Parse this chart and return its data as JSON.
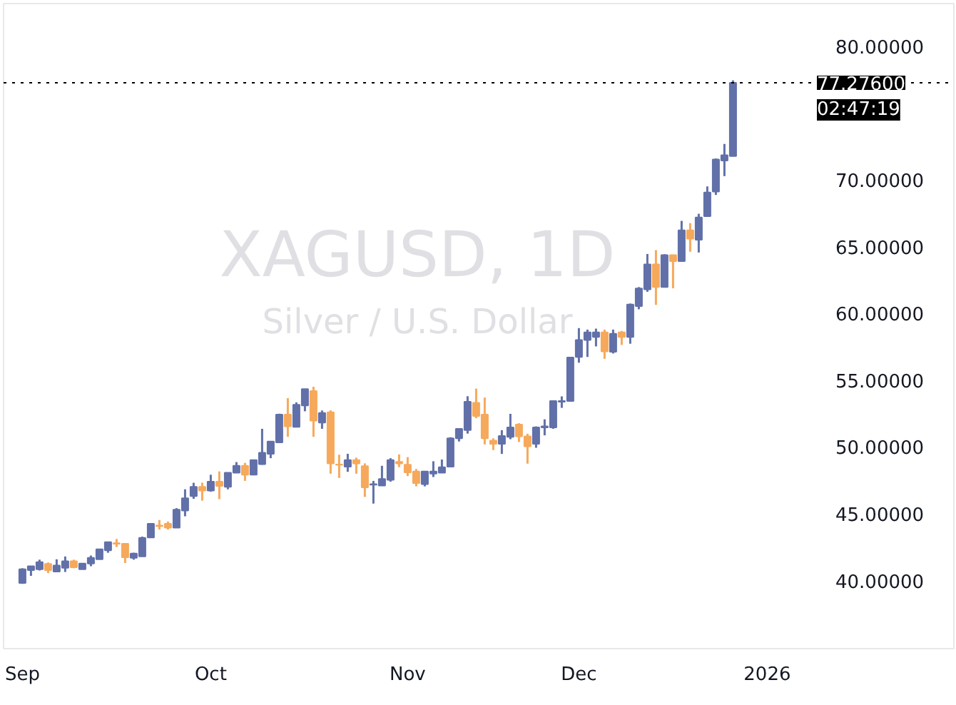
{
  "chart_data": {
    "type": "candlestick",
    "title": "XAGUSD, 1D",
    "subtitle": "Silver / U.S. Dollar",
    "categories": [
      "Sep",
      null,
      null,
      null,
      null,
      null,
      null,
      null,
      null,
      null,
      null,
      null,
      null,
      null,
      null,
      null,
      null,
      null,
      null,
      null,
      null,
      null,
      "Oct",
      null,
      null,
      null,
      null,
      null,
      null,
      null,
      null,
      null,
      null,
      null,
      null,
      null,
      null,
      null,
      null,
      null,
      null,
      null,
      null,
      null,
      null,
      "Nov",
      null,
      null,
      null,
      null,
      null,
      null,
      null,
      null,
      null,
      null,
      null,
      null,
      null,
      null,
      null,
      null,
      null,
      null,
      null,
      "Dec",
      null,
      null,
      null,
      null,
      null,
      null,
      null,
      null,
      null,
      null,
      null,
      null,
      null,
      null,
      null,
      null,
      null,
      null,
      null,
      null,
      null,
      "2026"
    ],
    "ohlc": [
      [
        39.82,
        40.92,
        39.75,
        40.85
      ],
      [
        40.78,
        41.07,
        40.35,
        41.07
      ],
      [
        40.85,
        41.56,
        40.75,
        41.38
      ],
      [
        41.24,
        41.35,
        40.56,
        40.78
      ],
      [
        40.67,
        41.59,
        40.67,
        41.13
      ],
      [
        40.95,
        41.8,
        40.64,
        41.45
      ],
      [
        41.45,
        41.56,
        40.92,
        40.99
      ],
      [
        40.85,
        41.27,
        40.85,
        41.27
      ],
      [
        41.27,
        41.87,
        41.07,
        41.7
      ],
      [
        41.59,
        42.34,
        41.59,
        42.34
      ],
      [
        42.26,
        42.87,
        42.08,
        42.87
      ],
      [
        42.79,
        43.11,
        42.51,
        42.76
      ],
      [
        42.76,
        42.76,
        41.31,
        41.74
      ],
      [
        41.7,
        42.08,
        41.56,
        42.02
      ],
      [
        41.8,
        43.29,
        41.8,
        43.19
      ],
      [
        43.22,
        44.25,
        43.22,
        44.25
      ],
      [
        44.11,
        44.53,
        43.82,
        44.07
      ],
      [
        44.25,
        44.42,
        43.82,
        43.96
      ],
      [
        43.96,
        45.42,
        43.96,
        45.31
      ],
      [
        45.24,
        46.83,
        44.81,
        46.16
      ],
      [
        46.32,
        47.32,
        46.12,
        47.01
      ],
      [
        47.01,
        47.33,
        45.98,
        46.73
      ],
      [
        46.73,
        47.92,
        46.65,
        47.4
      ],
      [
        47.4,
        48.17,
        46.09,
        47.08
      ],
      [
        47.01,
        48.07,
        46.83,
        48.07
      ],
      [
        48.07,
        48.87,
        48.07,
        48.59
      ],
      [
        48.59,
        48.81,
        47.46,
        47.92
      ],
      [
        47.92,
        49.02,
        47.92,
        49.02
      ],
      [
        48.71,
        51.36,
        48.67,
        49.56
      ],
      [
        49.49,
        50.41,
        49.16,
        50.41
      ],
      [
        50.34,
        52.49,
        50.34,
        52.42
      ],
      [
        52.42,
        53.66,
        50.76,
        51.54
      ],
      [
        51.5,
        53.34,
        51.5,
        53.16
      ],
      [
        53.1,
        54.33,
        52.67,
        54.33
      ],
      [
        54.19,
        54.51,
        50.76,
        51.97
      ],
      [
        51.83,
        52.73,
        51.36,
        52.54
      ],
      [
        52.6,
        52.74,
        48.0,
        48.77
      ],
      [
        48.69,
        49.42,
        47.68,
        48.67
      ],
      [
        48.53,
        49.49,
        48.14,
        49.02
      ],
      [
        49.02,
        49.2,
        48.0,
        48.77
      ],
      [
        48.57,
        48.77,
        46.26,
        46.97
      ],
      [
        47.18,
        47.46,
        45.76,
        47.22
      ],
      [
        47.11,
        48.59,
        47.11,
        47.6
      ],
      [
        47.54,
        49.16,
        47.4,
        49.02
      ],
      [
        48.88,
        49.44,
        48.49,
        48.77
      ],
      [
        48.67,
        49.24,
        47.82,
        48.1
      ],
      [
        48.17,
        48.35,
        47.05,
        47.29
      ],
      [
        47.22,
        48.17,
        47.05,
        48.17
      ],
      [
        48.0,
        48.93,
        47.75,
        48.17
      ],
      [
        48.07,
        49.06,
        48.07,
        48.49
      ],
      [
        48.53,
        50.73,
        48.53,
        50.65
      ],
      [
        50.65,
        51.36,
        50.41,
        51.36
      ],
      [
        51.26,
        53.8,
        51.0,
        53.38
      ],
      [
        53.31,
        54.37,
        52.15,
        52.32
      ],
      [
        52.42,
        53.7,
        50.19,
        50.65
      ],
      [
        50.47,
        50.65,
        49.77,
        50.23
      ],
      [
        50.23,
        51.26,
        49.48,
        50.82
      ],
      [
        50.76,
        52.48,
        50.58,
        51.46
      ],
      [
        51.68,
        51.78,
        50.37,
        50.79
      ],
      [
        50.79,
        50.99,
        48.75,
        50.05
      ],
      [
        50.23,
        51.54,
        49.94,
        51.46
      ],
      [
        51.46,
        52.07,
        50.87,
        51.54
      ],
      [
        51.46,
        53.44,
        51.36,
        53.44
      ],
      [
        53.38,
        53.79,
        52.93,
        53.44
      ],
      [
        53.44,
        56.7,
        53.44,
        56.7
      ],
      [
        56.74,
        58.9,
        56.31,
        58.01
      ],
      [
        58.01,
        58.79,
        56.74,
        58.58
      ],
      [
        58.23,
        58.86,
        57.53,
        58.58
      ],
      [
        58.58,
        58.79,
        56.6,
        57.15
      ],
      [
        57.12,
        58.79,
        57.0,
        58.47
      ],
      [
        58.58,
        58.69,
        57.64,
        58.23
      ],
      [
        58.23,
        60.74,
        57.73,
        60.67
      ],
      [
        60.55,
        61.97,
        60.31,
        61.87
      ],
      [
        61.8,
        64.45,
        61.62,
        63.67
      ],
      [
        63.67,
        64.74,
        60.64,
        61.97
      ],
      [
        61.97,
        64.43,
        61.97,
        64.37
      ],
      [
        64.37,
        64.37,
        61.88,
        63.91
      ],
      [
        63.91,
        66.93,
        63.91,
        66.22
      ],
      [
        66.22,
        66.76,
        64.62,
        65.59
      ],
      [
        65.51,
        67.46,
        64.56,
        67.18
      ],
      [
        67.28,
        69.51,
        67.28,
        69.05
      ],
      [
        69.12,
        71.6,
        68.87,
        71.53
      ],
      [
        71.45,
        72.69,
        70.28,
        71.84
      ],
      [
        71.78,
        77.45,
        71.78,
        77.276
      ],
      null,
      null,
      null,
      null
    ],
    "colors": [
      "#6170a8",
      "#6170a8",
      "#6170a8",
      "#f6a95b",
      "#6170a8",
      "#6170a8",
      "#f6a95b",
      "#6170a8",
      "#6170a8",
      "#6170a8",
      "#6170a8",
      "#f6a95b",
      "#f6a95b",
      "#6170a8",
      "#6170a8",
      "#6170a8",
      "#f6a95b",
      "#f6a95b",
      "#6170a8",
      "#6170a8",
      "#6170a8",
      "#f6a95b",
      "#6170a8",
      "#f6a95b",
      "#6170a8",
      "#6170a8",
      "#f6a95b",
      "#6170a8",
      "#6170a8",
      "#6170a8",
      "#6170a8",
      "#f6a95b",
      "#6170a8",
      "#6170a8",
      "#f6a95b",
      "#6170a8",
      "#f6a95b",
      "#f6a95b",
      "#6170a8",
      "#f6a95b",
      "#f6a95b",
      "#6170a8",
      "#6170a8",
      "#6170a8",
      "#f6a95b",
      "#f6a95b",
      "#f6a95b",
      "#6170a8",
      "#6170a8",
      "#6170a8",
      "#6170a8",
      "#6170a8",
      "#6170a8",
      "#f6a95b",
      "#f6a95b",
      "#f6a95b",
      "#6170a8",
      "#6170a8",
      "#f6a95b",
      "#f6a95b",
      "#6170a8",
      "#6170a8",
      "#6170a8",
      "#6170a8",
      "#6170a8",
      "#6170a8",
      "#6170a8",
      "#6170a8",
      "#f6a95b",
      "#6170a8",
      "#f6a95b",
      "#6170a8",
      "#6170a8",
      "#6170a8",
      "#f6a95b",
      "#6170a8",
      "#f6a95b",
      "#6170a8",
      "#f6a95b",
      "#6170a8",
      "#6170a8",
      "#6170a8",
      "#6170a8",
      "#6170a8",
      null,
      null,
      null,
      null
    ],
    "ylim": [
      34.9,
      83.2
    ],
    "yticks": [
      {
        "value": 40,
        "label": "40.00000"
      },
      {
        "value": 45,
        "label": "45.00000"
      },
      {
        "value": 50,
        "label": "50.00000"
      },
      {
        "value": 55,
        "label": "55.00000"
      },
      {
        "value": 60,
        "label": "60.00000"
      },
      {
        "value": 65,
        "label": "65.00000"
      },
      {
        "value": 70,
        "label": "70.00000"
      },
      {
        "value": 80,
        "label": "80.00000"
      }
    ],
    "ref_lines": [
      {
        "axis": "y",
        "value": 77.276,
        "label": "77.27600",
        "color": "#000000",
        "line_style": "dotted"
      }
    ],
    "annotations": [
      "02:47:19"
    ],
    "grid": false
  }
}
